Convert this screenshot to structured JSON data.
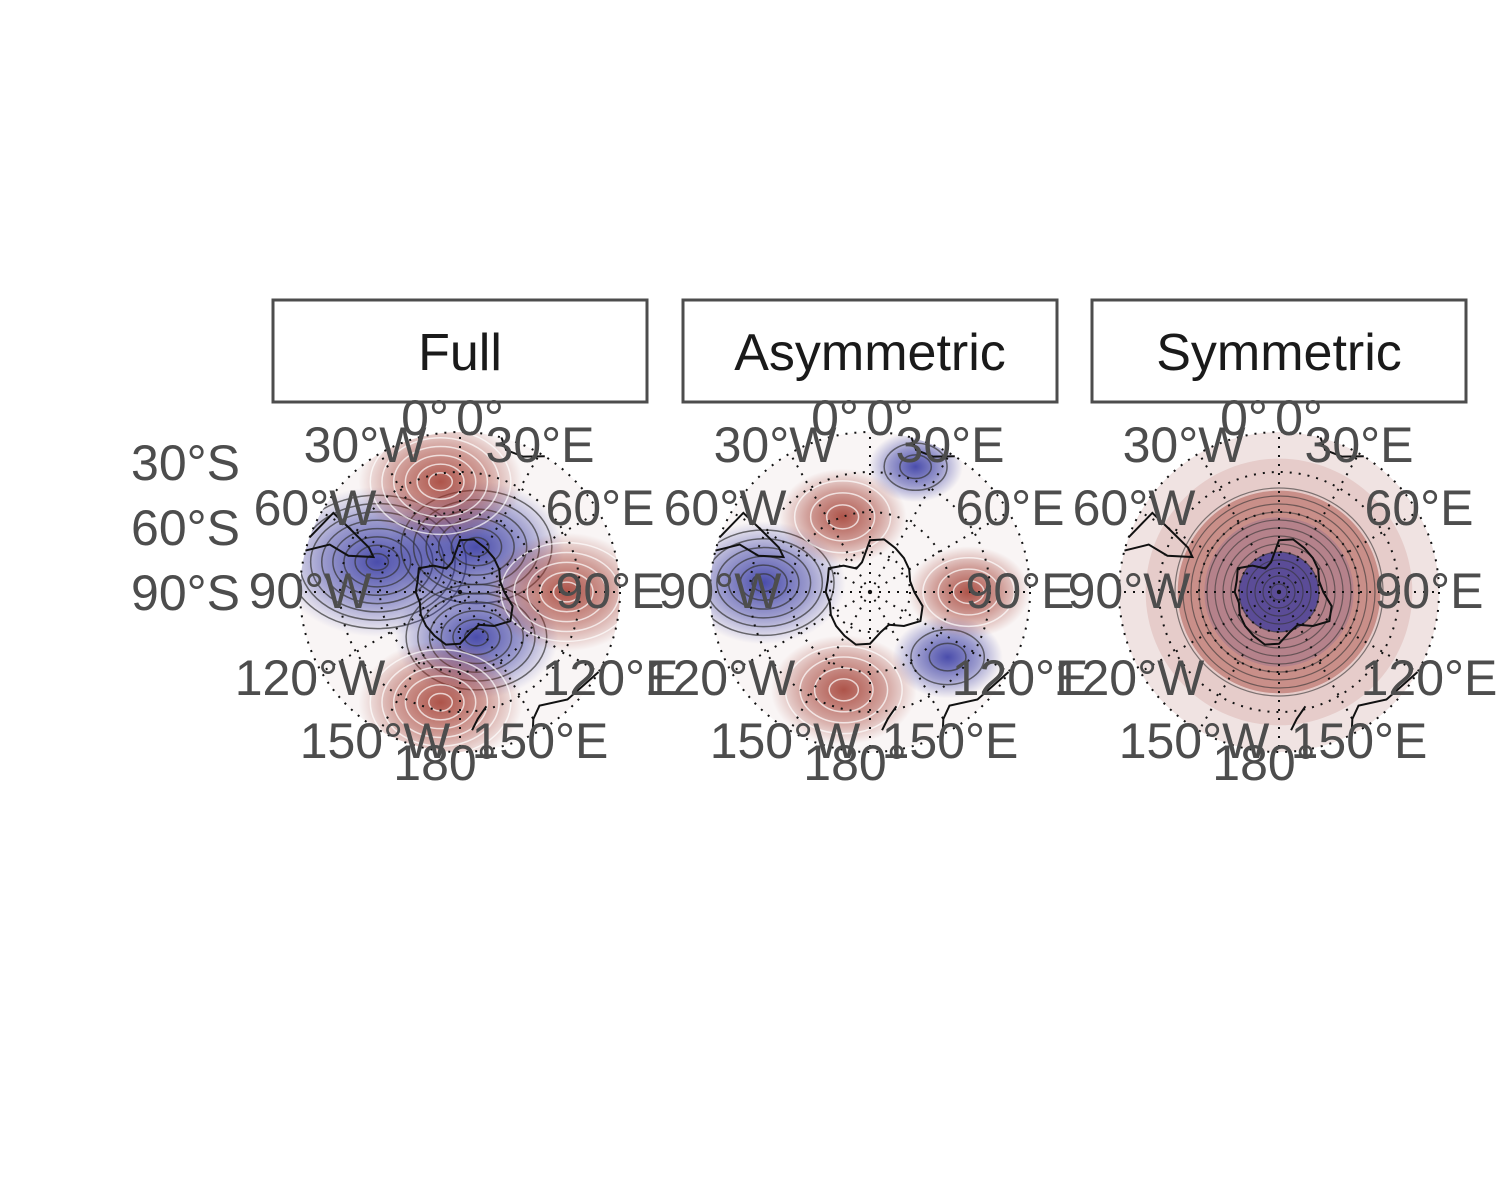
{
  "chart_data": {
    "type": "heatmap",
    "projection": "south-polar-stereographic",
    "panels": [
      "Full",
      "Asymmetric",
      "Symmetric"
    ],
    "latitude_labels": [
      "30°S",
      "60°S",
      "90°S"
    ],
    "longitude_labels": [
      "0°",
      "0°",
      "30°W",
      "30°E",
      "60°W",
      "60°E",
      "90°W",
      "90°E",
      "120°W",
      "120°E",
      "150°W",
      "150°E",
      "180°"
    ],
    "color_scale": {
      "negative": "#2b2f9e",
      "zero": "#f7f7f7",
      "positive": "#a0372b"
    },
    "grid": "dotted",
    "legend": "none",
    "fields": [
      {
        "panel": "Full",
        "anomalies": [
          {
            "lon": -70,
            "lat": -57,
            "value": -1.0
          },
          {
            "lon": 20,
            "lat": -72,
            "value": -0.8
          },
          {
            "lon": 160,
            "lat": -72,
            "value": -0.7
          },
          {
            "lon": -10,
            "lat": -48,
            "value": 0.7
          },
          {
            "lon": 90,
            "lat": -50,
            "value": 0.65
          },
          {
            "lon": -170,
            "lat": -48,
            "value": 0.7
          }
        ]
      },
      {
        "panel": "Asymmetric",
        "anomalies": [
          {
            "lon": -85,
            "lat": -50,
            "value": -0.7
          },
          {
            "lon": 130,
            "lat": -52,
            "value": -0.25
          },
          {
            "lon": 20,
            "lat": -40,
            "value": -0.12
          },
          {
            "lon": -20,
            "lat": -60,
            "value": 0.4
          },
          {
            "lon": 90,
            "lat": -53,
            "value": 0.35
          },
          {
            "lon": -165,
            "lat": -52,
            "value": 0.55
          }
        ]
      },
      {
        "panel": "Symmetric",
        "zonal_profile": [
          {
            "lat": -90,
            "value": -0.85
          },
          {
            "lat": -75,
            "value": -0.75
          },
          {
            "lat": -62,
            "value": -0.1
          },
          {
            "lat": -52,
            "value": 0.45
          },
          {
            "lat": -40,
            "value": 0.1
          },
          {
            "lat": -30,
            "value": 0.05
          }
        ]
      }
    ]
  }
}
